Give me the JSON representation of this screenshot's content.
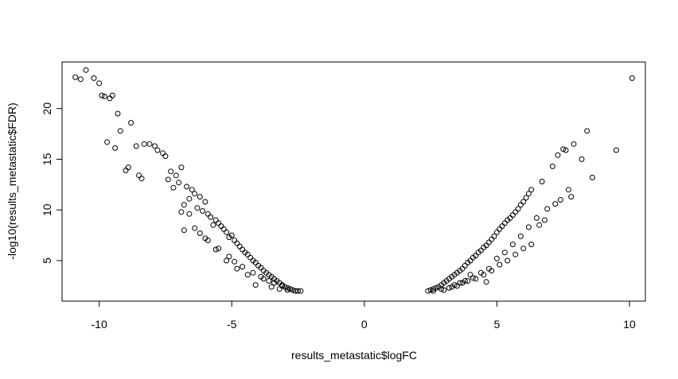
{
  "chart_data": {
    "type": "scatter",
    "title": "",
    "xlabel": "results_metastatic$logFC",
    "ylabel": "-log10(results_metastatic$FDR)",
    "xlim": [
      -11.4,
      10.6
    ],
    "ylim": [
      1.0,
      24.6
    ],
    "xticks": [
      -10,
      -5,
      0,
      5,
      10
    ],
    "yticks": [
      5,
      10,
      15,
      20
    ],
    "xtick_labels": [
      "-10",
      "-5",
      "0",
      "5",
      "10"
    ],
    "ytick_labels": [
      "5",
      "10",
      "15",
      "20"
    ],
    "grid": false,
    "legend": "none",
    "marker": "open-circle",
    "point_color": "#000000",
    "series": [
      {
        "x": [
          -10.5,
          -10.9,
          -10.7,
          -10.2,
          -10.0,
          -9.9,
          -9.8,
          -9.6,
          -9.5,
          -9.3,
          -9.7,
          -9.4,
          -8.8,
          -9.2,
          -8.3,
          -8.6,
          -8.9,
          -8.5,
          -8.4,
          -9.0,
          -7.9,
          -7.8,
          -7.5,
          -8.1,
          -7.6,
          -7.3,
          -7.1,
          -6.9,
          -7.4,
          -7.0,
          -6.7,
          -6.5,
          -6.4,
          -6.6,
          -6.2,
          -6.0,
          -6.8,
          -6.3,
          -6.1,
          -5.9,
          -5.8,
          -5.6,
          -5.5,
          -5.7,
          -5.4,
          -5.3,
          -5.2,
          -5.0,
          -5.1,
          -4.9,
          -4.8,
          -4.7,
          -4.6,
          -4.5,
          -4.4,
          -4.3,
          -4.2,
          -4.1,
          -4.0,
          -3.9,
          -3.8,
          -3.7,
          -3.6,
          -3.5,
          -3.4,
          -3.3,
          -3.2,
          -3.1,
          -3.0,
          -2.9,
          -2.8,
          -2.7,
          -2.6,
          -2.5,
          -2.4,
          -6.9,
          -6.6,
          -6.4,
          -6.2,
          -5.9,
          -5.5,
          -5.1,
          -4.9,
          -4.6,
          -4.2,
          -3.9,
          -3.6,
          -3.4,
          -3.1,
          -2.8,
          -7.2,
          -6.8,
          -6.0,
          -5.6,
          -5.2,
          -4.8,
          -4.4,
          -4.1,
          -3.8,
          -3.5,
          -3.2,
          -2.9,
          -2.6
        ],
        "y": [
          23.8,
          23.1,
          22.9,
          23.0,
          22.5,
          21.3,
          21.2,
          21.0,
          21.3,
          19.5,
          16.7,
          16.1,
          18.6,
          17.8,
          16.5,
          16.3,
          14.2,
          13.4,
          13.1,
          13.9,
          16.3,
          15.9,
          15.3,
          16.5,
          15.6,
          13.8,
          13.4,
          14.2,
          13.0,
          12.7,
          12.3,
          12.0,
          11.6,
          11.1,
          11.3,
          10.8,
          10.5,
          10.2,
          9.9,
          9.6,
          9.3,
          9.0,
          8.7,
          8.5,
          8.4,
          8.1,
          7.8,
          7.5,
          7.3,
          7.0,
          6.7,
          6.4,
          6.1,
          5.8,
          5.6,
          5.3,
          5.0,
          4.8,
          4.5,
          4.3,
          4.0,
          3.8,
          3.6,
          3.4,
          3.2,
          3.0,
          2.8,
          2.6,
          2.4,
          2.3,
          2.2,
          2.1,
          2.0,
          2.0,
          2.0,
          9.8,
          9.6,
          8.2,
          7.7,
          7.0,
          6.2,
          5.4,
          4.9,
          4.4,
          3.8,
          3.4,
          3.0,
          2.8,
          2.5,
          2.2,
          12.2,
          8.0,
          7.2,
          6.1,
          5.0,
          4.2,
          3.6,
          2.6,
          3.2,
          2.4,
          2.2,
          2.1,
          2.0
        ]
      },
      {
        "x": [
          2.4,
          2.5,
          2.6,
          2.7,
          2.8,
          2.9,
          3.0,
          3.1,
          3.2,
          3.3,
          3.4,
          3.5,
          3.6,
          3.7,
          3.8,
          3.9,
          4.0,
          4.1,
          4.2,
          4.3,
          4.4,
          4.5,
          4.6,
          4.7,
          4.8,
          4.9,
          5.0,
          5.1,
          5.2,
          5.3,
          5.4,
          5.5,
          5.6,
          5.7,
          5.8,
          5.9,
          6.0,
          6.1,
          6.2,
          6.3,
          6.5,
          6.7,
          6.9,
          7.1,
          7.3,
          7.5,
          7.6,
          7.7,
          7.9,
          8.2,
          8.4,
          8.6,
          9.5,
          10.1,
          3.0,
          3.3,
          3.6,
          3.9,
          4.2,
          4.5,
          4.8,
          5.1,
          5.4,
          5.7,
          6.0,
          6.3,
          6.6,
          3.2,
          3.5,
          3.8,
          4.1,
          4.4,
          4.7,
          5.0,
          5.3,
          5.6,
          5.9,
          6.2,
          6.8,
          7.2,
          7.4,
          7.8,
          2.6,
          2.9,
          3.4,
          3.7,
          4.0,
          4.6
        ],
        "y": [
          2.0,
          2.1,
          2.2,
          2.3,
          2.4,
          2.6,
          2.8,
          3.0,
          3.2,
          3.4,
          3.6,
          3.8,
          4.0,
          4.2,
          4.5,
          4.8,
          5.0,
          5.3,
          5.5,
          5.8,
          6.0,
          6.3,
          6.5,
          6.8,
          7.1,
          7.4,
          7.8,
          8.1,
          8.4,
          8.7,
          9.0,
          9.2,
          9.5,
          9.8,
          10.1,
          10.5,
          10.8,
          11.2,
          11.6,
          12.0,
          9.2,
          12.8,
          10.1,
          14.3,
          15.4,
          16.0,
          15.9,
          12.0,
          16.5,
          15.0,
          17.8,
          13.2,
          15.9,
          23.0,
          2.1,
          2.4,
          2.8,
          3.0,
          3.2,
          3.6,
          4.0,
          4.6,
          5.0,
          5.6,
          6.2,
          6.6,
          8.5,
          2.3,
          2.5,
          3.0,
          3.3,
          3.8,
          4.2,
          5.2,
          5.8,
          6.6,
          7.4,
          8.3,
          9.0,
          10.6,
          11.0,
          11.3,
          2.0,
          2.2,
          2.6,
          2.8,
          3.6,
          2.9
        ]
      }
    ]
  }
}
